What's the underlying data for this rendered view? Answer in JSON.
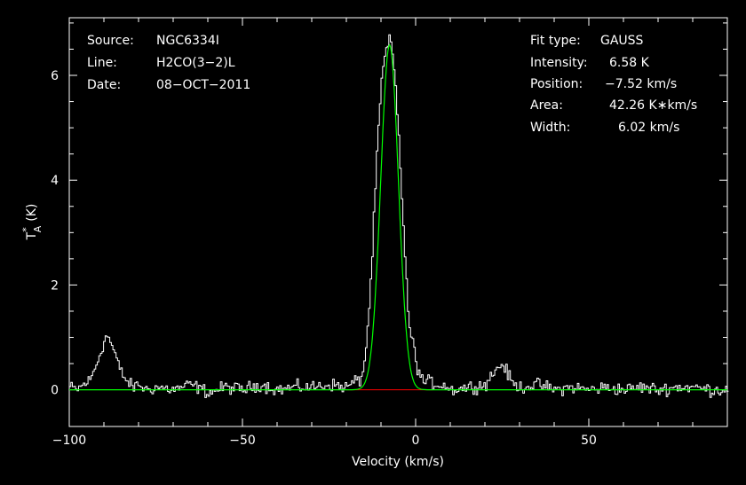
{
  "chart_data": {
    "type": "line",
    "xlabel": "Velocity (km/s)",
    "ylabel_main": "T",
    "ylabel_sup": "*",
    "ylabel_sub": "A",
    "ylabel_unit": "(K)",
    "xlim": [
      -100,
      90
    ],
    "ylim": [
      -0.7,
      7.1
    ],
    "xticks": [
      -100,
      -50,
      0,
      50
    ],
    "xtick_labels": [
      "−100",
      "−50",
      "0",
      "50"
    ],
    "yticks": [
      0,
      2,
      4,
      6
    ],
    "ytick_labels": [
      "0",
      "2",
      "4",
      "6"
    ],
    "grid": false,
    "colors": {
      "background": "#000000",
      "spectrum": "#ffffff",
      "fit": "#00ff00",
      "baseline": "#ff0000",
      "axes": "#ffffff"
    },
    "fit": {
      "type": "GAUSS",
      "amplitude_K": 6.58,
      "center_kms": -7.52,
      "fwhm_kms": 6.02
    },
    "series": [
      {
        "style": "step",
        "x": [
          -100,
          -98,
          -96,
          -94,
          -92,
          -90,
          -89,
          -88,
          -87,
          -86,
          -84,
          -82,
          -80,
          -78,
          -75,
          -70,
          -65,
          -60,
          -55,
          -50,
          -45,
          -40,
          -35,
          -30,
          -25,
          -20,
          -18,
          -16,
          -15,
          -14,
          -13,
          -12,
          -11,
          -10,
          -9,
          -8,
          -7.5,
          -7,
          -6,
          -5,
          -4,
          -3,
          -2,
          -1,
          0,
          1,
          2,
          4,
          6,
          8,
          10,
          15,
          20,
          22,
          24,
          25,
          26,
          28,
          30,
          35,
          40,
          45,
          50,
          55,
          60,
          65,
          70,
          75,
          80,
          85,
          90
        ],
        "y": [
          0.05,
          0.0,
          0.1,
          0.2,
          0.55,
          0.95,
          1.05,
          0.85,
          0.7,
          0.45,
          0.2,
          0.05,
          0.1,
          0.0,
          0.05,
          0.0,
          0.1,
          -0.05,
          0.05,
          0.0,
          0.1,
          0.0,
          0.05,
          0.05,
          0.1,
          0.05,
          0.15,
          0.2,
          0.5,
          1.2,
          2.2,
          3.6,
          4.9,
          5.9,
          6.4,
          6.6,
          6.7,
          6.5,
          5.8,
          4.8,
          3.5,
          2.2,
          1.2,
          0.9,
          0.5,
          0.3,
          0.15,
          0.15,
          0.1,
          0.1,
          0.0,
          0.05,
          0.1,
          0.3,
          0.45,
          0.5,
          0.35,
          0.1,
          0.05,
          0.1,
          0.0,
          0.05,
          0.0,
          0.05,
          0.0,
          0.05,
          0.0,
          0.05,
          0.05,
          0.0,
          0.0
        ]
      }
    ]
  },
  "info_left": [
    {
      "label": "Source:",
      "value": "NGC6334I"
    },
    {
      "label": "Line:",
      "value": "H2CO(3−2)L"
    },
    {
      "label": "Date:",
      "value": "08−OCT−2011"
    }
  ],
  "info_right": [
    {
      "label": "Fit type:",
      "value": "GAUSS"
    },
    {
      "label": "Intensity:",
      "value": "6.58 K"
    },
    {
      "label": "Position:",
      "value": "−7.52 km/s"
    },
    {
      "label": "Area:",
      "value": "42.26 K∗km/s"
    },
    {
      "label": "Width:",
      "value": "6.02 km/s"
    }
  ]
}
